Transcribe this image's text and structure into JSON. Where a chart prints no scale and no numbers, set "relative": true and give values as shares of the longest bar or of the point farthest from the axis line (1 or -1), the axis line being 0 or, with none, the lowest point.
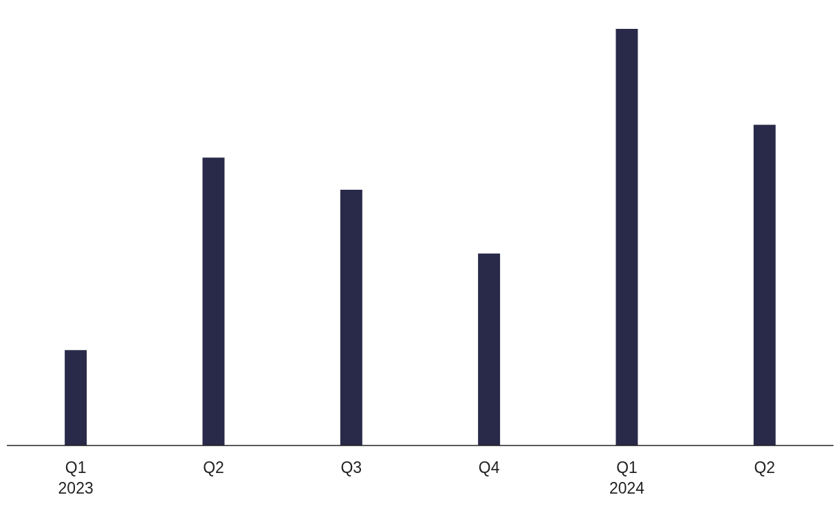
{
  "chart_data": {
    "type": "bar",
    "relative": true,
    "categories": [
      "Q1\n2023",
      "Q2",
      "Q3",
      "Q4",
      "Q1\n2024",
      "Q2"
    ],
    "values": [
      0.229,
      0.691,
      0.614,
      0.461,
      1,
      0.77
    ],
    "color": "#292949"
  }
}
